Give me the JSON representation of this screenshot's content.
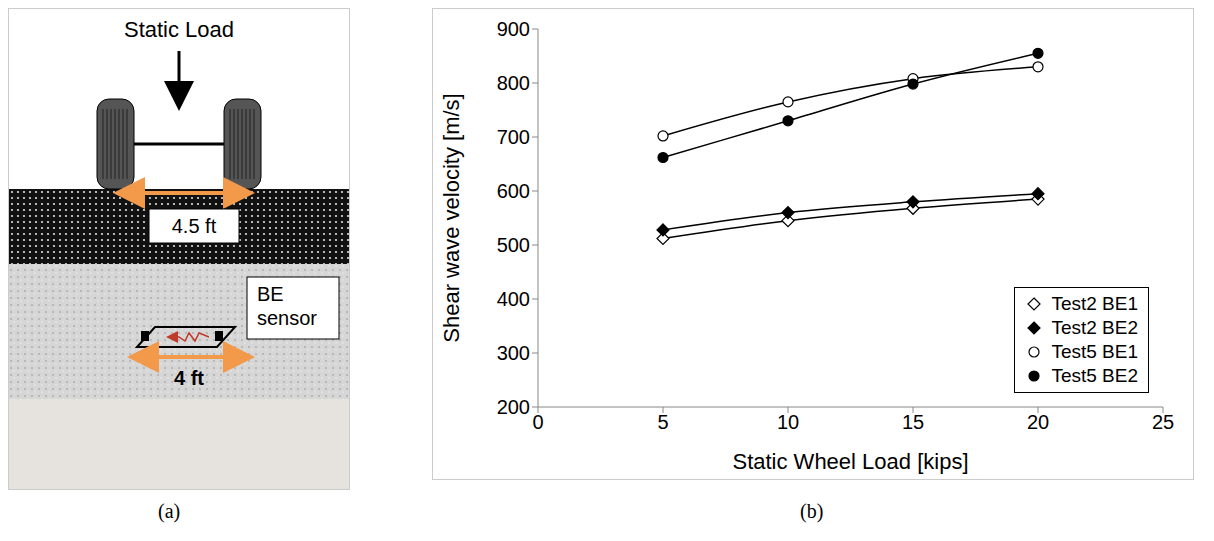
{
  "panel_labels": [
    "(a)",
    "(b)"
  ],
  "diagram": {
    "load": "Static Load",
    "wheel_spacing": "4.5 ft",
    "sensor": "BE sensor",
    "sensor_length": "4 ft"
  },
  "chart_data": {
    "type": "line",
    "x_label": "Static Wheel Load [kips]",
    "y_label": "Shear wave velocity [m/s]",
    "x": [
      5,
      10,
      15,
      20
    ],
    "xlim": [
      0,
      25
    ],
    "xticks": [
      0,
      5,
      10,
      15,
      20,
      25
    ],
    "ylim": [
      200,
      900
    ],
    "yticks": [
      200,
      300,
      400,
      500,
      600,
      700,
      800,
      900
    ],
    "grid": false,
    "legend": "lower right",
    "series": [
      {
        "name": "Test2 BE1",
        "color": "#000000",
        "marker": "open_diamond",
        "line_style": "solid",
        "values": [
          512,
          545,
          568,
          585
        ]
      },
      {
        "name": "Test2 BE2",
        "color": "#000000",
        "marker": "diamond",
        "line_style": "solid",
        "values": [
          528,
          560,
          580,
          595
        ]
      },
      {
        "name": "Test5 BE1",
        "color": "#000000",
        "marker": "open_circle",
        "line_style": "solid",
        "values": [
          702,
          765,
          808,
          830
        ]
      },
      {
        "name": "Test5 BE2",
        "color": "#000000",
        "marker": "circle",
        "line_style": "solid",
        "values": [
          662,
          730,
          798,
          855
        ]
      }
    ]
  }
}
